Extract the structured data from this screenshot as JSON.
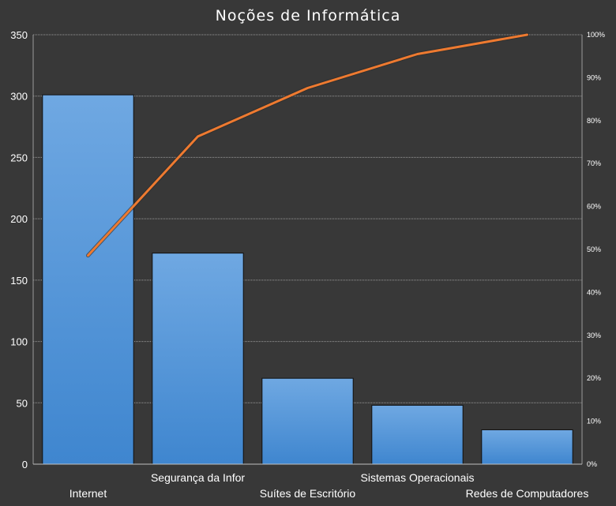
{
  "chart_data": {
    "type": "bar",
    "title": "Noções de Informática",
    "categories": [
      "Internet",
      "Segurança da Infor",
      "Suítes de Escritório",
      "Sistemas Operacionais",
      "Redes de Computadores"
    ],
    "series": [
      {
        "type": "bar",
        "values": [
          301,
          172,
          70,
          48,
          28
        ],
        "color": "#4a8fd6"
      },
      {
        "type": "line",
        "axis": "secondary",
        "values": [
          48.6,
          76.3,
          87.6,
          95.5,
          100
        ],
        "color": "#ee7a30"
      }
    ],
    "ylim": [
      0,
      350
    ],
    "yticks": [
      0,
      50,
      100,
      150,
      200,
      250,
      300,
      350
    ],
    "y2lim": [
      0,
      100
    ],
    "y2ticks": [
      "0%",
      "10%",
      "20%",
      "30%",
      "40%",
      "50%",
      "60%",
      "70%",
      "80%",
      "90%",
      "100%"
    ],
    "grid": true,
    "legend": "none",
    "xlabel": "",
    "ylabel": ""
  }
}
